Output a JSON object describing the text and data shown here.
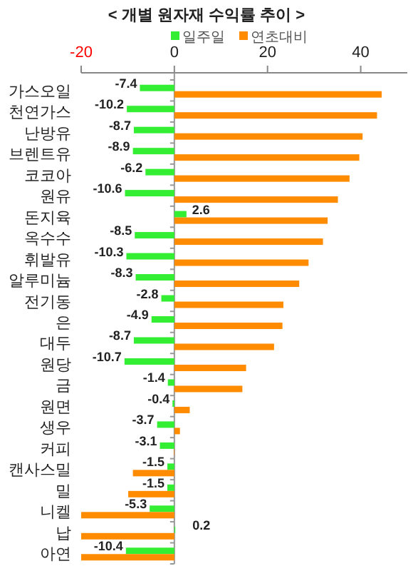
{
  "chart_data": {
    "type": "bar",
    "orientation": "horizontal",
    "title": "< 개별 원자재 수익률 추이 >",
    "categories": [
      "가스오일",
      "천연가스",
      "난방유",
      "브렌트유",
      "코코아",
      "원유",
      "돈지육",
      "옥수수",
      "휘발유",
      "알루미늄",
      "전기동",
      "은",
      "대두",
      "원당",
      "금",
      "원면",
      "생우",
      "커피",
      "캔사스밀",
      "밀",
      "니켈",
      "납",
      "아연"
    ],
    "series": [
      {
        "name": "일주일",
        "color": "#33ee33",
        "values": [
          -7.4,
          -10.2,
          -8.7,
          -8.9,
          -6.2,
          -10.6,
          2.6,
          -8.5,
          -10.3,
          -8.3,
          -2.8,
          -4.9,
          -8.7,
          -10.7,
          -1.4,
          -0.4,
          -3.7,
          -3.1,
          -1.5,
          -1.5,
          -5.3,
          0.2,
          -10.4
        ],
        "value_labels": [
          "-7.4",
          "-10.2",
          "-8.7",
          "-8.9",
          "-6.2",
          "-10.6",
          "2.6",
          "-8.5",
          "-10.3",
          "-8.3",
          "-2.8",
          "-4.9",
          "-8.7",
          "-10.7",
          "-1.4",
          "-0.4",
          "-3.7",
          "-3.1",
          "-1.5",
          "-1.5",
          "-5.3",
          "0.2",
          "-10.4"
        ]
      },
      {
        "name": "연초대비",
        "color": "#ff8c00",
        "values": [
          44.5,
          43.5,
          40.4,
          39.7,
          37.6,
          35.1,
          32.9,
          31.9,
          28.8,
          26.8,
          23.4,
          23.2,
          21.4,
          15.4,
          14.6,
          3.3,
          1.2,
          -0.1,
          -8.9,
          -9.9,
          -20,
          -20,
          -20
        ]
      }
    ],
    "xlim": [
      -20,
      50
    ],
    "xticks": [
      -20,
      0,
      20,
      40
    ],
    "legend": "top"
  }
}
